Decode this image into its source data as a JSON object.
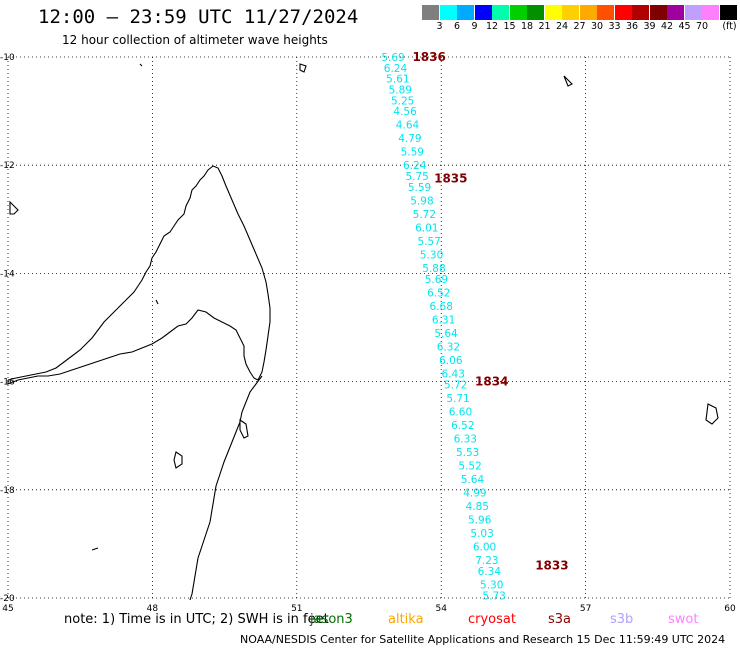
{
  "header": {
    "title": "12:00 — 23:59 UTC 11/27/2024",
    "subtitle": "12 hour collection of altimeter wave heights"
  },
  "legend": {
    "labels": [
      "3",
      "6",
      "9",
      "12",
      "15",
      "18",
      "21",
      "24",
      "27",
      "30",
      "33",
      "36",
      "39",
      "42",
      "45",
      "70"
    ],
    "unit": "(ft)",
    "colors": [
      "#7f7f7f",
      "#00ffff",
      "#00aaff",
      "#0000ff",
      "#00ffaa",
      "#00d000",
      "#009000",
      "#ffff00",
      "#ffd000",
      "#ffaa00",
      "#ff5000",
      "#ff0000",
      "#b00000",
      "#800000",
      "#a000a0",
      "#c0a0ff",
      "#ff80ff",
      "#000000"
    ]
  },
  "axes": {
    "x_ticks": [
      "45",
      "48",
      "51",
      "54",
      "57",
      "60"
    ],
    "y_ticks": [
      "-10",
      "-12",
      "-14",
      "-16",
      "-18",
      "-20"
    ],
    "lon_range": [
      45,
      60
    ],
    "lat_range": [
      -20,
      -10
    ]
  },
  "track": {
    "color": "#00e5ee",
    "orbit_color": "#800000",
    "points": [
      {
        "lon": 53.0,
        "lat": -10.0,
        "v": "5.69"
      },
      {
        "lon": 53.05,
        "lat": -10.2,
        "v": "6.24"
      },
      {
        "lon": 53.1,
        "lat": -10.4,
        "v": "5.61"
      },
      {
        "lon": 53.15,
        "lat": -10.6,
        "v": "5.89"
      },
      {
        "lon": 53.2,
        "lat": -10.8,
        "v": "5.25"
      },
      {
        "lon": 53.25,
        "lat": -11.0,
        "v": "4.56"
      },
      {
        "lon": 53.3,
        "lat": -11.25,
        "v": "4.64"
      },
      {
        "lon": 53.35,
        "lat": -11.5,
        "v": "4.79"
      },
      {
        "lon": 53.4,
        "lat": -11.75,
        "v": "5.59"
      },
      {
        "lon": 53.45,
        "lat": -12.0,
        "v": "6.24"
      },
      {
        "lon": 53.5,
        "lat": -12.2,
        "v": "5.75"
      },
      {
        "lon": 53.55,
        "lat": -12.4,
        "v": "5.59"
      },
      {
        "lon": 53.6,
        "lat": -12.65,
        "v": "5.98"
      },
      {
        "lon": 53.65,
        "lat": -12.9,
        "v": "5.72"
      },
      {
        "lon": 53.7,
        "lat": -13.15,
        "v": "6.01"
      },
      {
        "lon": 53.75,
        "lat": -13.4,
        "v": "5.57"
      },
      {
        "lon": 53.8,
        "lat": -13.65,
        "v": "5.30"
      },
      {
        "lon": 53.85,
        "lat": -13.9,
        "v": "5.88"
      },
      {
        "lon": 53.9,
        "lat": -14.1,
        "v": "5.69"
      },
      {
        "lon": 53.95,
        "lat": -14.35,
        "v": "6.52"
      },
      {
        "lon": 54.0,
        "lat": -14.6,
        "v": "6.68"
      },
      {
        "lon": 54.05,
        "lat": -14.85,
        "v": "6.31"
      },
      {
        "lon": 54.1,
        "lat": -15.1,
        "v": "5.64"
      },
      {
        "lon": 54.15,
        "lat": -15.35,
        "v": "6.32"
      },
      {
        "lon": 54.2,
        "lat": -15.6,
        "v": "6.06"
      },
      {
        "lon": 54.25,
        "lat": -15.85,
        "v": "6.43"
      },
      {
        "lon": 54.3,
        "lat": -16.05,
        "v": "5.72"
      },
      {
        "lon": 54.35,
        "lat": -16.3,
        "v": "5.71"
      },
      {
        "lon": 54.4,
        "lat": -16.55,
        "v": "6.60"
      },
      {
        "lon": 54.45,
        "lat": -16.8,
        "v": "6.52"
      },
      {
        "lon": 54.5,
        "lat": -17.05,
        "v": "6.33"
      },
      {
        "lon": 54.55,
        "lat": -17.3,
        "v": "5.53"
      },
      {
        "lon": 54.6,
        "lat": -17.55,
        "v": "5.52"
      },
      {
        "lon": 54.65,
        "lat": -17.8,
        "v": "5.64"
      },
      {
        "lon": 54.7,
        "lat": -18.05,
        "v": "4.99"
      },
      {
        "lon": 54.75,
        "lat": -18.3,
        "v": "4.85"
      },
      {
        "lon": 54.8,
        "lat": -18.55,
        "v": "5.96"
      },
      {
        "lon": 54.85,
        "lat": -18.8,
        "v": "5.03"
      },
      {
        "lon": 54.9,
        "lat": -19.05,
        "v": "6.00"
      },
      {
        "lon": 54.95,
        "lat": -19.3,
        "v": "7.23"
      },
      {
        "lon": 55.0,
        "lat": -19.5,
        "v": "6.34"
      },
      {
        "lon": 55.05,
        "lat": -19.75,
        "v": "5.30"
      },
      {
        "lon": 55.1,
        "lat": -19.95,
        "v": "5.73"
      }
    ],
    "orbits": [
      {
        "label": "1836",
        "lon": 53.75,
        "lat": -10.0
      },
      {
        "label": "1835",
        "lon": 54.2,
        "lat": -12.25
      },
      {
        "label": "1834",
        "lon": 55.05,
        "lat": -16.0
      },
      {
        "label": "1833",
        "lon": 56.3,
        "lat": -19.4
      }
    ]
  },
  "footer": {
    "note": "note:  1) Time is in UTC; 2) SWH is in feet",
    "satellites": [
      {
        "name": "jason3",
        "color": "#007000"
      },
      {
        "name": "altika",
        "color": "#ffa500"
      },
      {
        "name": "cryosat",
        "color": "#ff0000"
      },
      {
        "name": "s3a",
        "color": "#8b0000"
      },
      {
        "name": "s3b",
        "color": "#b0a0ff"
      },
      {
        "name": "swot",
        "color": "#ff80ff"
      }
    ],
    "credit": "NOAA/NESDIS Center for Satellite Applications and Research    15 Dec 11:59:49 UTC 2024"
  }
}
